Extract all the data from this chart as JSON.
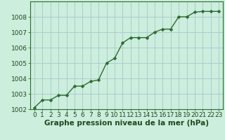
{
  "x": [
    0,
    1,
    2,
    3,
    4,
    5,
    6,
    7,
    8,
    9,
    10,
    11,
    12,
    13,
    14,
    15,
    16,
    17,
    18,
    19,
    20,
    21,
    22,
    23
  ],
  "y": [
    1002.1,
    1002.6,
    1002.6,
    1002.9,
    1002.9,
    1003.5,
    1003.5,
    1003.8,
    1003.9,
    1005.0,
    1005.3,
    1006.3,
    1006.65,
    1006.65,
    1006.65,
    1007.0,
    1007.2,
    1007.2,
    1008.0,
    1008.0,
    1008.3,
    1008.35,
    1008.35,
    1008.35
  ],
  "line_color": "#2d6a2d",
  "marker": "D",
  "marker_size": 2.5,
  "bg_color": "#cceedd",
  "grid_color": "#aacccc",
  "xlabel": "Graphe pression niveau de la mer (hPa)",
  "xlabel_fontsize": 7.5,
  "ylim": [
    1002,
    1009
  ],
  "xlim": [
    -0.5,
    23.5
  ],
  "yticks": [
    1002,
    1003,
    1004,
    1005,
    1006,
    1007,
    1008
  ],
  "xticks": [
    0,
    1,
    2,
    3,
    4,
    5,
    6,
    7,
    8,
    9,
    10,
    11,
    12,
    13,
    14,
    15,
    16,
    17,
    18,
    19,
    20,
    21,
    22,
    23
  ],
  "tick_fontsize": 6.5,
  "line_width": 1.0,
  "label_color": "#1a4a1a",
  "axis_color": "#2d6a2d"
}
